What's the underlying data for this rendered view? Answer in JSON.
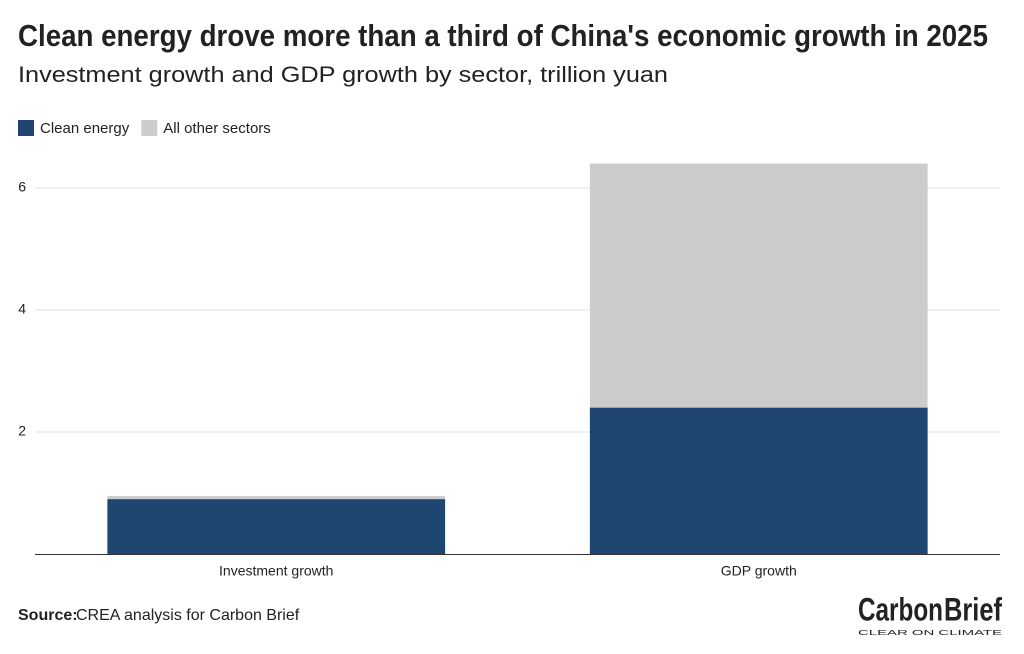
{
  "chart_data": {
    "type": "stacked_bar",
    "title": "Clean energy drove more than a third of China's economic growth in 2025",
    "subtitle": "Investment growth and GDP growth by sector, trillion yuan",
    "categories": [
      "Investment growth",
      "GDP growth"
    ],
    "series": [
      {
        "name": "Clean energy",
        "color": "#1f4571",
        "values": [
          0.9,
          2.4
        ]
      },
      {
        "name": "All other sectors",
        "color": "#cccccc",
        "values": [
          0.05,
          4.0
        ]
      }
    ],
    "ylim": [
      0,
      6.5
    ],
    "yticks": [
      2,
      4,
      6
    ],
    "grid": true,
    "legend": "top-left",
    "source_label": "Source:",
    "source": "CREA analysis for Carbon Brief",
    "logo_parts": [
      "Carbon",
      "Brief"
    ],
    "logo_tagline": "CLEAR ON CLIMATE"
  }
}
